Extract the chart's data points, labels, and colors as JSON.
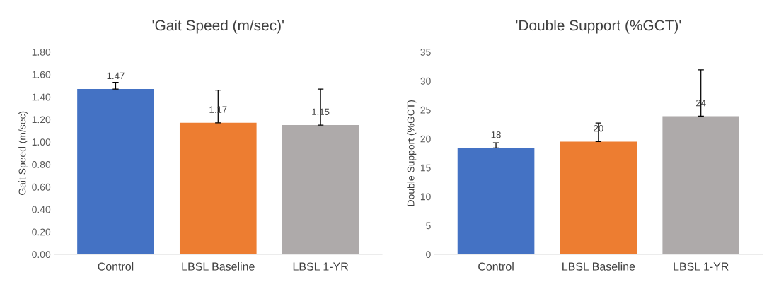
{
  "chart_data": [
    {
      "type": "bar",
      "title": "'Gait Speed (m/sec)'",
      "ylabel": "Gait Speed (m/sec)",
      "categories": [
        "Control",
        "LBSL Baseline",
        "LBSL 1-YR"
      ],
      "values": [
        1.47,
        1.17,
        1.15
      ],
      "colors": [
        "#4472c4",
        "#ed7d31",
        "#aeaaaa"
      ],
      "errors": [
        [
          1.47,
          1.53
        ],
        [
          1.17,
          1.46
        ],
        [
          1.15,
          1.47
        ]
      ],
      "data_labels": true,
      "ylim": [
        0,
        1.8
      ],
      "yticks": [
        {
          "value": 0,
          "label": "0.00"
        },
        {
          "value": 0.2,
          "label": "0.20"
        },
        {
          "value": 0.4,
          "label": "0.40"
        },
        {
          "value": 0.6,
          "label": "0.60"
        },
        {
          "value": 0.8,
          "label": "0.80"
        },
        {
          "value": 1.0,
          "label": "1.00"
        },
        {
          "value": 1.2,
          "label": "1.20"
        },
        {
          "value": 1.4,
          "label": "1.40"
        },
        {
          "value": 1.6,
          "label": "1.60"
        },
        {
          "value": 1.8,
          "label": "1.80"
        }
      ]
    },
    {
      "type": "bar",
      "title": "'Double Support (%GCT)'",
      "ylabel": "Double Support (%GCT)",
      "categories": [
        "Control",
        "LBSL Baseline",
        "LBSL 1-YR"
      ],
      "values": [
        18.4,
        19.5,
        23.9
      ],
      "colors": [
        "#4472c4",
        "#ed7d31",
        "#aeaaaa"
      ],
      "errors": [
        [
          18.4,
          19.3
        ],
        [
          19.5,
          22.7
        ],
        [
          23.9,
          31.9
        ]
      ],
      "value_labels": [
        "18",
        "20",
        "24"
      ],
      "ylim": [
        0,
        35
      ],
      "yticks": [
        0,
        5,
        10,
        15,
        20,
        25,
        30,
        35
      ]
    }
  ]
}
